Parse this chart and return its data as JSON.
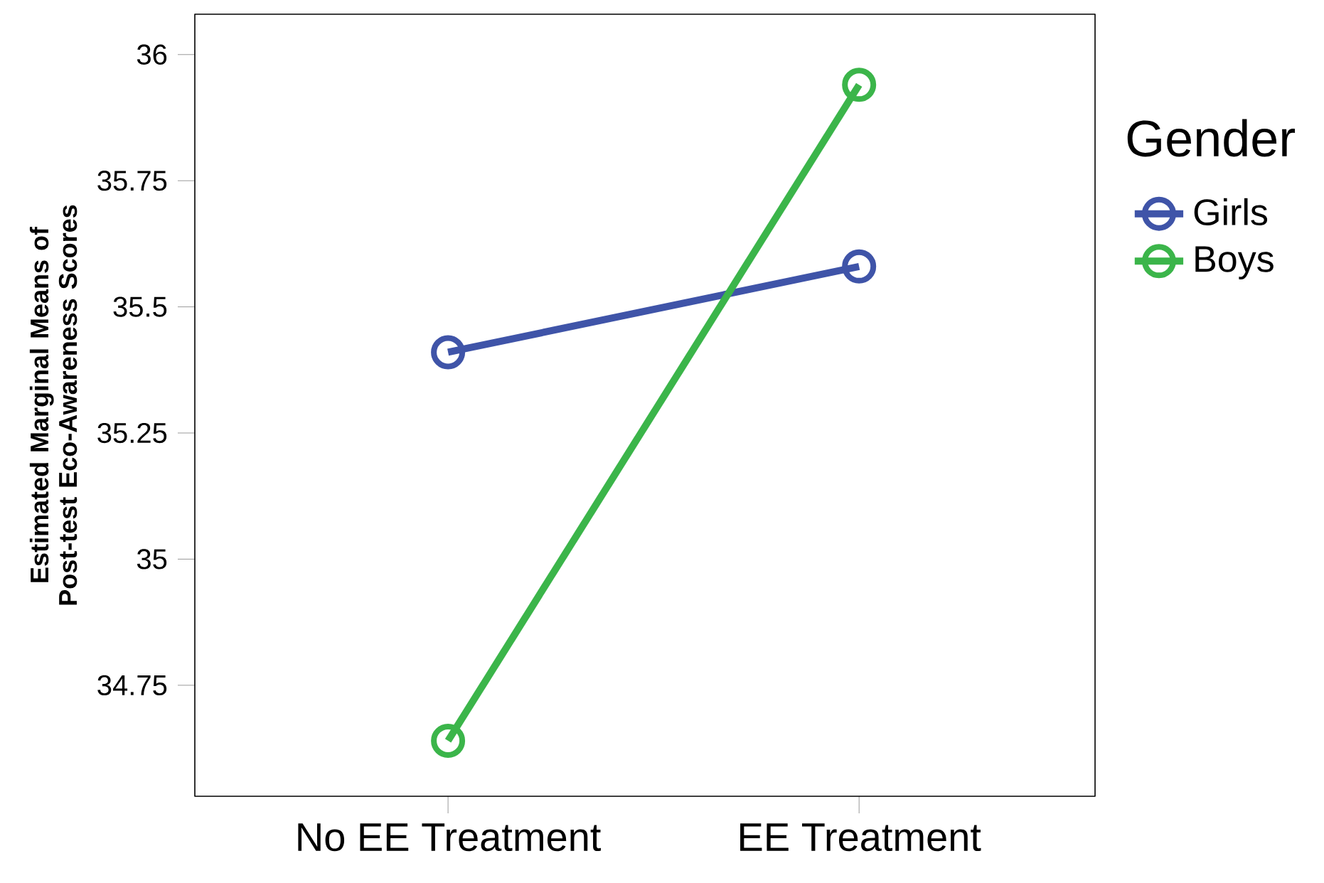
{
  "chart_data": {
    "type": "line",
    "ylabel": "Estimated Marginal Means of Post-test Eco-Awareness Scores",
    "legend_title": "Gender",
    "categories": [
      "No EE Treatment",
      "EE Treatment"
    ],
    "series": [
      {
        "name": "Girls",
        "color": "#3f54a8",
        "values": [
          35.41,
          35.58
        ]
      },
      {
        "name": "Boys",
        "color": "#3bb54a",
        "values": [
          34.64,
          35.94
        ]
      }
    ],
    "ylim": [
      34.53,
      36.08
    ],
    "yticks": [
      34.75,
      35,
      35.25,
      35.5,
      35.75,
      36
    ],
    "grid": false,
    "legend": "right",
    "marker": "circle",
    "line_style": "solid"
  }
}
